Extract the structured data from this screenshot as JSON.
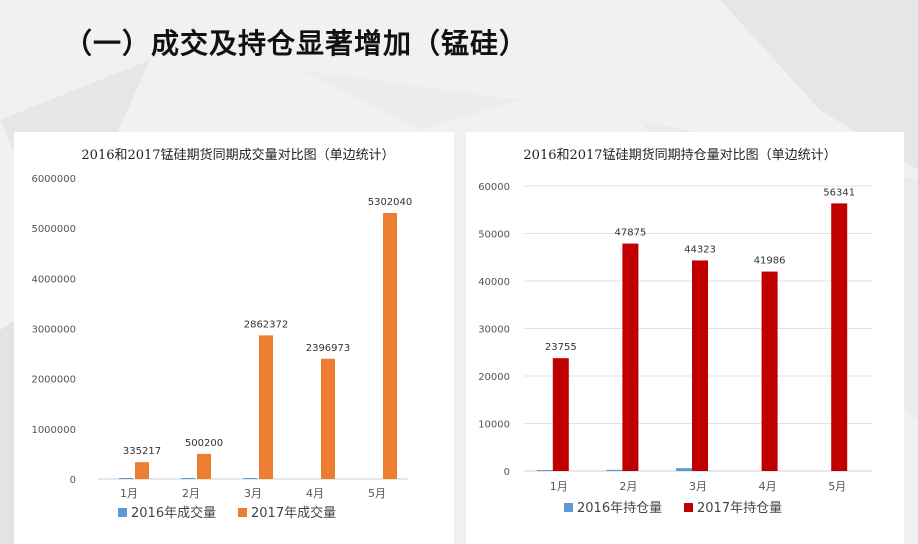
{
  "slide": {
    "title": "（一）成交及持仓显著增加（锰硅）"
  },
  "chart_data": [
    {
      "type": "bar",
      "title": "2016和2017锰硅期货同期成交量对比图（单边统计）",
      "categories": [
        "1月",
        "2月",
        "3月",
        "4月",
        "5月"
      ],
      "series": [
        {
          "name": "2016年成交量",
          "values": [
            5000,
            6000,
            18000,
            null,
            null
          ],
          "color": "#5b9bd5",
          "show_labels": false
        },
        {
          "name": "2017年成交量",
          "values": [
            335217,
            500200,
            2862372,
            2396973,
            5302040
          ],
          "color": "#ed7d31",
          "show_labels": true
        }
      ],
      "ylim": [
        0,
        6000000
      ],
      "yticks": [
        0,
        1000000,
        2000000,
        3000000,
        4000000,
        5000000,
        6000000
      ],
      "grid": false,
      "legend": "bottom"
    },
    {
      "type": "bar",
      "title": "2016和2017锰硅期货同期持仓量对比图（单边统计）",
      "categories": [
        "1月",
        "2月",
        "3月",
        "4月",
        "5月"
      ],
      "series": [
        {
          "name": "2016年持仓量",
          "values": [
            200,
            250,
            600,
            null,
            null
          ],
          "color": "#5b9bd5",
          "show_labels": false
        },
        {
          "name": "2017年持仓量",
          "values": [
            23755,
            47875,
            44323,
            41986,
            56341
          ],
          "color": "#c00000",
          "show_labels": true
        }
      ],
      "ylim": [
        0,
        60000
      ],
      "yticks": [
        0,
        10000,
        20000,
        30000,
        40000,
        50000,
        60000
      ],
      "grid": true,
      "legend": "bottom"
    }
  ]
}
